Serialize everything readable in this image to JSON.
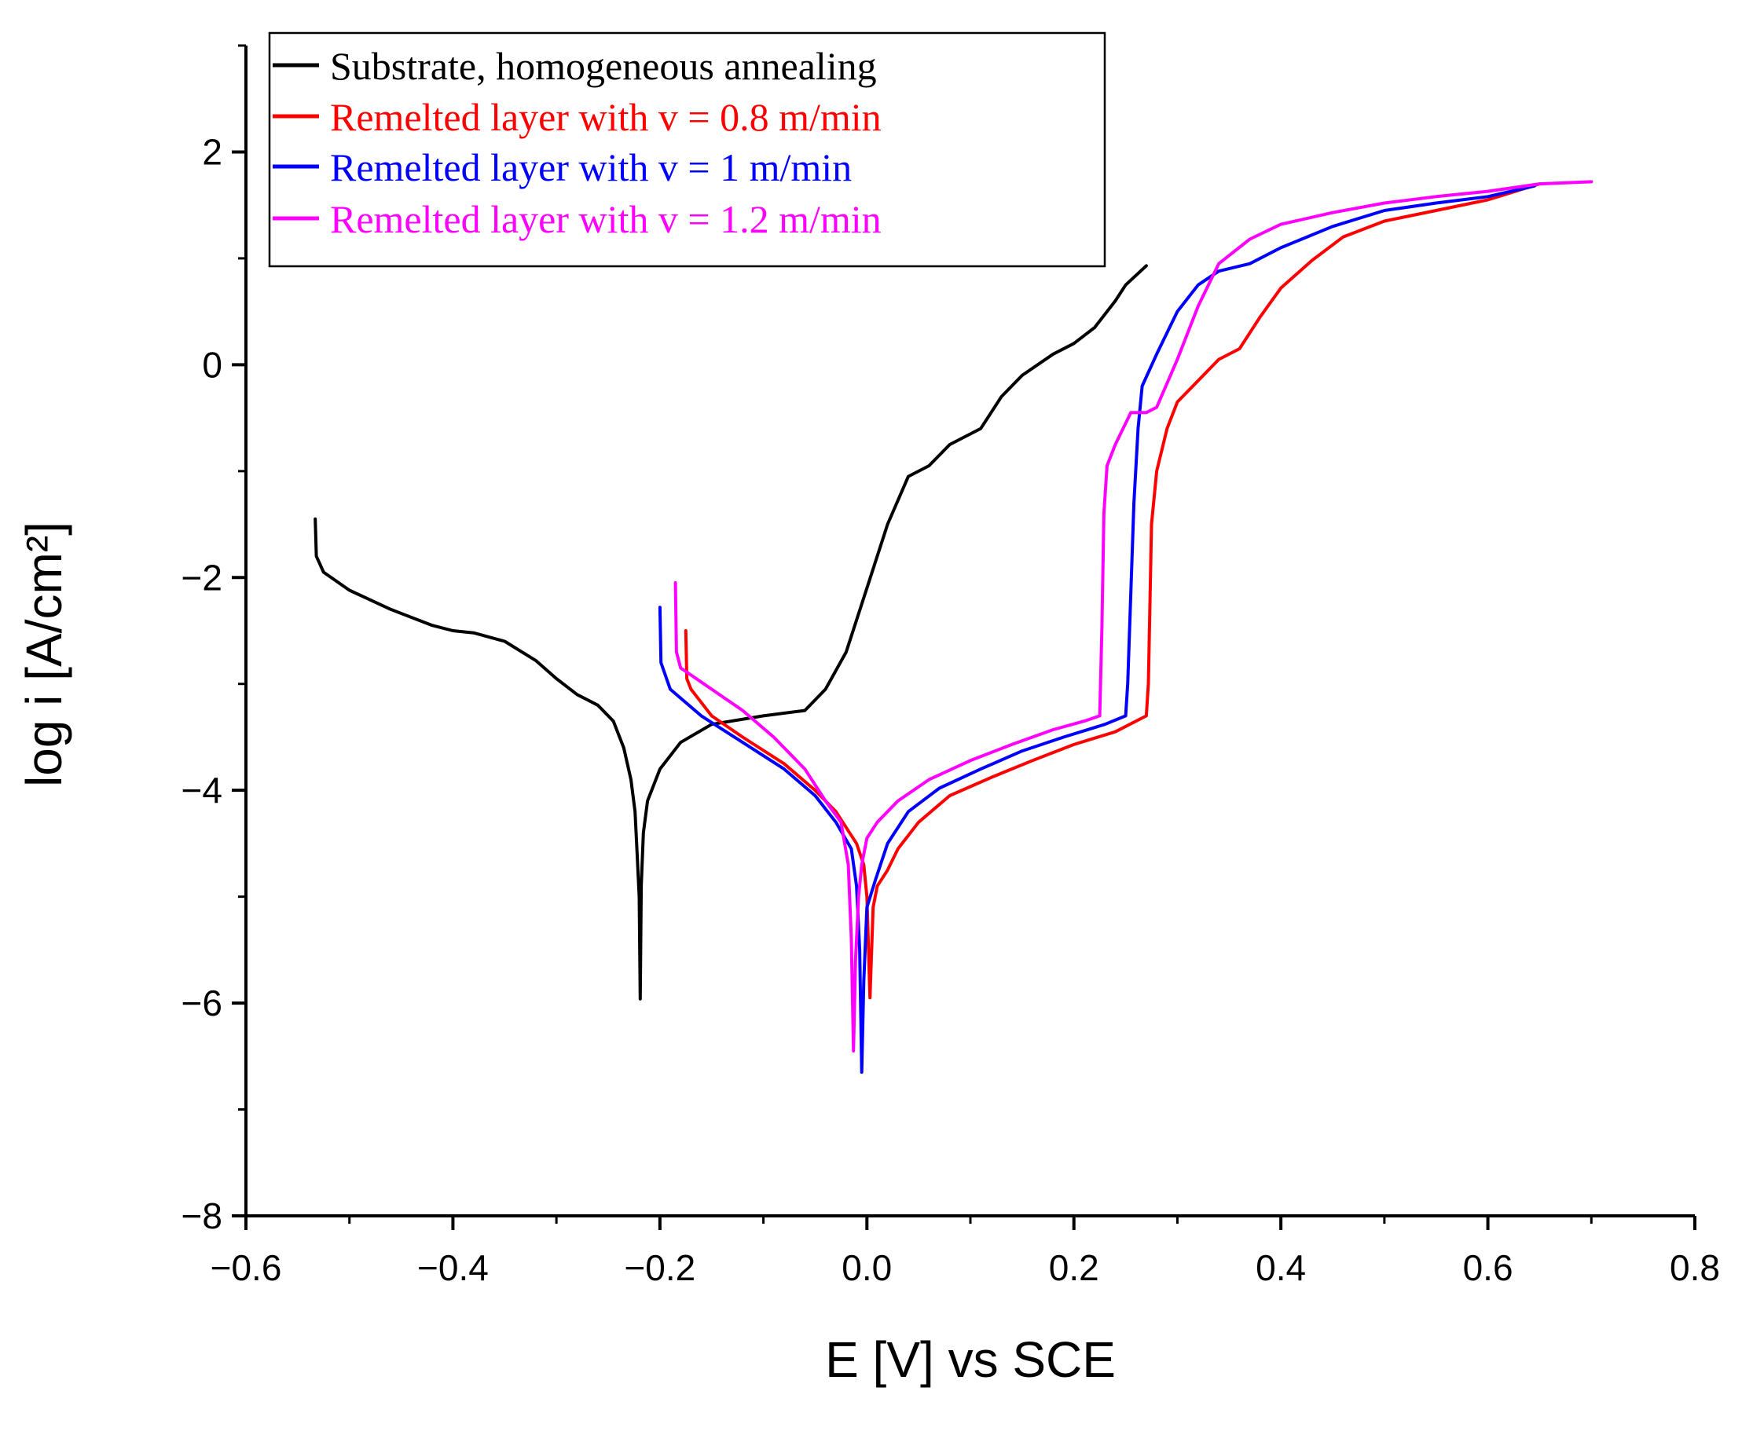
{
  "chart_data": {
    "type": "line",
    "title": "",
    "xlabel": "E [V] vs SCE",
    "ylabel": "log i [A/cm²]",
    "xlim": [
      -0.6,
      0.8
    ],
    "ylim": [
      -8,
      3
    ],
    "x_ticks": [
      -0.6,
      -0.4,
      -0.2,
      0.0,
      0.2,
      0.4,
      0.6,
      0.8
    ],
    "x_tick_labels": [
      "−0.6",
      "−0.4",
      "−0.2",
      "0.0",
      "0.2",
      "0.4",
      "0.6",
      "0.8"
    ],
    "y_ticks": [
      -8,
      -6,
      -4,
      -2,
      0,
      2
    ],
    "y_tick_labels": [
      "−8",
      "−6",
      "−4",
      "−2",
      "0",
      "2"
    ],
    "grid": false,
    "legend_position": "top-left",
    "series": [
      {
        "name": "Substrate, homogeneous annealing",
        "color": "#000000",
        "points": [
          [
            -0.533,
            -1.45
          ],
          [
            -0.532,
            -1.8
          ],
          [
            -0.525,
            -1.95
          ],
          [
            -0.5,
            -2.12
          ],
          [
            -0.46,
            -2.3
          ],
          [
            -0.42,
            -2.45
          ],
          [
            -0.4,
            -2.5
          ],
          [
            -0.38,
            -2.52
          ],
          [
            -0.35,
            -2.6
          ],
          [
            -0.32,
            -2.78
          ],
          [
            -0.3,
            -2.95
          ],
          [
            -0.28,
            -3.1
          ],
          [
            -0.26,
            -3.2
          ],
          [
            -0.245,
            -3.35
          ],
          [
            -0.235,
            -3.6
          ],
          [
            -0.228,
            -3.9
          ],
          [
            -0.224,
            -4.2
          ],
          [
            -0.222,
            -4.6
          ],
          [
            -0.22,
            -5.0
          ],
          [
            -0.219,
            -5.96
          ],
          [
            -0.218,
            -4.9
          ],
          [
            -0.216,
            -4.4
          ],
          [
            -0.212,
            -4.1
          ],
          [
            -0.2,
            -3.8
          ],
          [
            -0.18,
            -3.55
          ],
          [
            -0.15,
            -3.38
          ],
          [
            -0.1,
            -3.3
          ],
          [
            -0.06,
            -3.25
          ],
          [
            -0.04,
            -3.05
          ],
          [
            -0.02,
            -2.7
          ],
          [
            0.0,
            -2.1
          ],
          [
            0.02,
            -1.5
          ],
          [
            0.04,
            -1.05
          ],
          [
            0.06,
            -0.95
          ],
          [
            0.08,
            -0.75
          ],
          [
            0.11,
            -0.6
          ],
          [
            0.13,
            -0.3
          ],
          [
            0.15,
            -0.1
          ],
          [
            0.18,
            0.1
          ],
          [
            0.2,
            0.2
          ],
          [
            0.22,
            0.35
          ],
          [
            0.24,
            0.6
          ],
          [
            0.25,
            0.75
          ],
          [
            0.27,
            0.93
          ]
        ]
      },
      {
        "name": "Remelted layer with v = 0.8 m/min",
        "color": "#ff0000",
        "points": [
          [
            -0.175,
            -2.5
          ],
          [
            -0.174,
            -2.95
          ],
          [
            -0.17,
            -3.05
          ],
          [
            -0.15,
            -3.3
          ],
          [
            -0.12,
            -3.5
          ],
          [
            -0.08,
            -3.75
          ],
          [
            -0.05,
            -4.0
          ],
          [
            -0.03,
            -4.2
          ],
          [
            -0.01,
            -4.5
          ],
          [
            -0.003,
            -4.7
          ],
          [
            0.0,
            -5.0
          ],
          [
            0.003,
            -5.95
          ],
          [
            0.006,
            -5.1
          ],
          [
            0.01,
            -4.9
          ],
          [
            0.02,
            -4.75
          ],
          [
            0.03,
            -4.55
          ],
          [
            0.05,
            -4.3
          ],
          [
            0.08,
            -4.05
          ],
          [
            0.12,
            -3.88
          ],
          [
            0.16,
            -3.72
          ],
          [
            0.2,
            -3.57
          ],
          [
            0.24,
            -3.45
          ],
          [
            0.27,
            -3.3
          ],
          [
            0.272,
            -3.0
          ],
          [
            0.275,
            -1.5
          ],
          [
            0.28,
            -1.0
          ],
          [
            0.29,
            -0.6
          ],
          [
            0.3,
            -0.35
          ],
          [
            0.32,
            -0.15
          ],
          [
            0.34,
            0.05
          ],
          [
            0.36,
            0.15
          ],
          [
            0.38,
            0.45
          ],
          [
            0.4,
            0.72
          ],
          [
            0.43,
            0.98
          ],
          [
            0.46,
            1.2
          ],
          [
            0.5,
            1.35
          ],
          [
            0.55,
            1.45
          ],
          [
            0.6,
            1.55
          ],
          [
            0.65,
            1.7
          ]
        ]
      },
      {
        "name": "Remelted layer with v = 1 m/min",
        "color": "#0000ff",
        "points": [
          [
            -0.2,
            -2.28
          ],
          [
            -0.199,
            -2.8
          ],
          [
            -0.19,
            -3.05
          ],
          [
            -0.16,
            -3.3
          ],
          [
            -0.12,
            -3.55
          ],
          [
            -0.08,
            -3.8
          ],
          [
            -0.05,
            -4.05
          ],
          [
            -0.03,
            -4.3
          ],
          [
            -0.015,
            -4.55
          ],
          [
            -0.01,
            -4.9
          ],
          [
            -0.007,
            -5.5
          ],
          [
            -0.005,
            -6.65
          ],
          [
            -0.003,
            -5.8
          ],
          [
            0.0,
            -5.1
          ],
          [
            0.008,
            -4.85
          ],
          [
            0.02,
            -4.5
          ],
          [
            0.04,
            -4.2
          ],
          [
            0.07,
            -3.98
          ],
          [
            0.11,
            -3.8
          ],
          [
            0.15,
            -3.63
          ],
          [
            0.19,
            -3.5
          ],
          [
            0.23,
            -3.38
          ],
          [
            0.25,
            -3.3
          ],
          [
            0.252,
            -3.0
          ],
          [
            0.258,
            -1.3
          ],
          [
            0.262,
            -0.6
          ],
          [
            0.266,
            -0.2
          ],
          [
            0.28,
            0.1
          ],
          [
            0.3,
            0.5
          ],
          [
            0.32,
            0.75
          ],
          [
            0.34,
            0.88
          ],
          [
            0.37,
            0.95
          ],
          [
            0.4,
            1.1
          ],
          [
            0.45,
            1.3
          ],
          [
            0.5,
            1.45
          ],
          [
            0.55,
            1.52
          ],
          [
            0.6,
            1.58
          ],
          [
            0.645,
            1.68
          ]
        ]
      },
      {
        "name": "Remelted layer with v = 1.2 m/min",
        "color": "#ff00ff",
        "points": [
          [
            -0.185,
            -2.05
          ],
          [
            -0.184,
            -2.7
          ],
          [
            -0.18,
            -2.85
          ],
          [
            -0.15,
            -3.05
          ],
          [
            -0.12,
            -3.25
          ],
          [
            -0.09,
            -3.5
          ],
          [
            -0.06,
            -3.8
          ],
          [
            -0.04,
            -4.1
          ],
          [
            -0.025,
            -4.3
          ],
          [
            -0.018,
            -4.7
          ],
          [
            -0.015,
            -5.4
          ],
          [
            -0.013,
            -6.45
          ],
          [
            -0.011,
            -5.6
          ],
          [
            -0.008,
            -5.0
          ],
          [
            -0.005,
            -4.7
          ],
          [
            0.0,
            -4.45
          ],
          [
            0.01,
            -4.3
          ],
          [
            0.03,
            -4.1
          ],
          [
            0.06,
            -3.9
          ],
          [
            0.1,
            -3.72
          ],
          [
            0.14,
            -3.57
          ],
          [
            0.18,
            -3.43
          ],
          [
            0.21,
            -3.35
          ],
          [
            0.225,
            -3.3
          ],
          [
            0.227,
            -2.5
          ],
          [
            0.229,
            -1.4
          ],
          [
            0.232,
            -0.95
          ],
          [
            0.24,
            -0.75
          ],
          [
            0.25,
            -0.55
          ],
          [
            0.255,
            -0.45
          ],
          [
            0.27,
            -0.45
          ],
          [
            0.28,
            -0.4
          ],
          [
            0.3,
            0.05
          ],
          [
            0.32,
            0.55
          ],
          [
            0.34,
            0.95
          ],
          [
            0.37,
            1.18
          ],
          [
            0.4,
            1.32
          ],
          [
            0.45,
            1.43
          ],
          [
            0.5,
            1.52
          ],
          [
            0.55,
            1.58
          ],
          [
            0.6,
            1.63
          ],
          [
            0.65,
            1.7
          ],
          [
            0.7,
            1.72
          ]
        ]
      }
    ]
  }
}
